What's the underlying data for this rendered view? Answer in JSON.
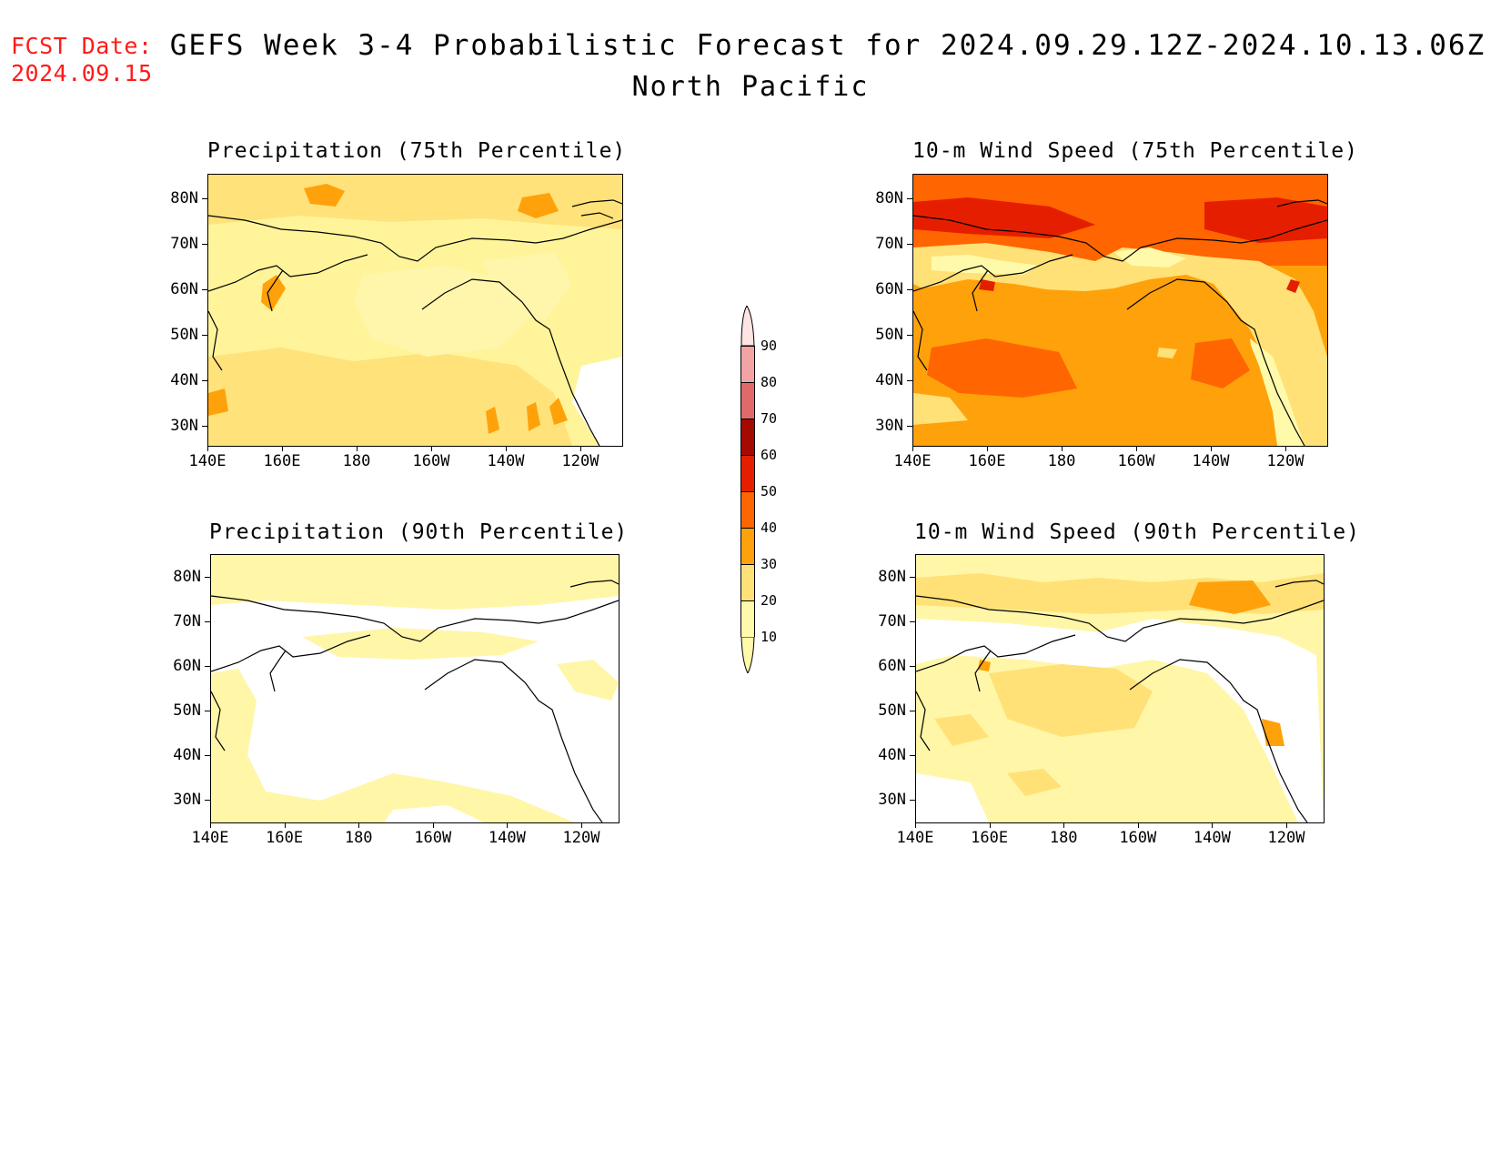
{
  "header": {
    "fcst_label": "FCST Date:",
    "fcst_date": "2024.09.15",
    "title": "GEFS Week 3-4 Probabilistic Forecast for 2024.09.29.12Z-2024.10.13.06Z",
    "region": "North Pacific"
  },
  "axes": {
    "lat_labels": [
      "80N",
      "70N",
      "60N",
      "50N",
      "40N",
      "30N"
    ],
    "lon_labels": [
      "140E",
      "160E",
      "180",
      "160W",
      "140W",
      "120W"
    ]
  },
  "panels": [
    {
      "id": "precip75",
      "title": "Precipitation (75th Percentile)",
      "background": "#fff49a"
    },
    {
      "id": "wind75",
      "title": "10-m Wind Speed (75th Percentile)",
      "background": "#ff9d1e"
    },
    {
      "id": "precip90",
      "title": "Precipitation (90th Percentile)",
      "background": "#ffffff"
    },
    {
      "id": "wind90",
      "title": "10-m Wind Speed (90th Percentile)",
      "background": "#fff6a8"
    }
  ],
  "colorbar": {
    "labels": [
      "90",
      "80",
      "70",
      "60",
      "50",
      "40",
      "30",
      "20",
      "10"
    ],
    "colors": {
      "c10": "#fffaaa",
      "c20": "#ffe177",
      "c30": "#ffa10a",
      "c40": "#ff6500",
      "c50": "#e61e00",
      "c60": "#a50a00",
      "c70": "#e06a6a",
      "c80": "#f2a3a3",
      "c90": "#ffe4e4"
    }
  }
}
